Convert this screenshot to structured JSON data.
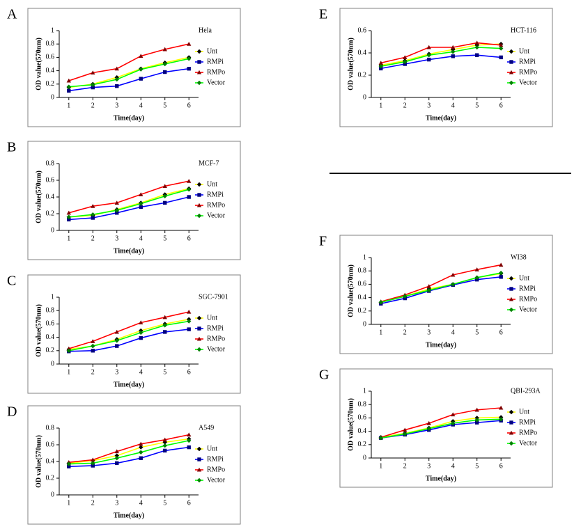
{
  "chart_data": [
    {
      "type": "line",
      "panel_label": "A",
      "title": "Hela",
      "xlabel": "Time(day)",
      "ylabel": "OD value(570nm)",
      "x": [
        1,
        2,
        3,
        4,
        5,
        6
      ],
      "xlim": [
        0.6,
        6.4
      ],
      "xticks": [
        1,
        2,
        3,
        4,
        5,
        6
      ],
      "ylim": [
        0,
        1
      ],
      "yticks": [
        0,
        0.2,
        0.4,
        0.6,
        0.8,
        1
      ],
      "series": [
        {
          "name": "Unt",
          "color": "#ffff00",
          "marker_color": "#000000",
          "marker": "diamond",
          "values": [
            0.15,
            0.2,
            0.3,
            0.43,
            0.52,
            0.6
          ]
        },
        {
          "name": "RMPi",
          "color": "#0000ff",
          "marker_color": "#000080",
          "marker": "square",
          "values": [
            0.1,
            0.15,
            0.17,
            0.28,
            0.38,
            0.43
          ]
        },
        {
          "name": "RMPo",
          "color": "#ff0000",
          "marker_color": "#800000",
          "marker": "triangle",
          "values": [
            0.25,
            0.37,
            0.43,
            0.62,
            0.72,
            0.8
          ]
        },
        {
          "name": "Vector",
          "color": "#00ff00",
          "marker_color": "#008000",
          "marker": "diamond",
          "values": [
            0.16,
            0.19,
            0.27,
            0.42,
            0.5,
            0.58
          ]
        }
      ]
    },
    {
      "type": "line",
      "panel_label": "B",
      "title": "MCF-7",
      "xlabel": "Time(day)",
      "ylabel": "OD value(570nm)",
      "x": [
        1,
        2,
        3,
        4,
        5,
        6
      ],
      "xlim": [
        0.6,
        6.4
      ],
      "xticks": [
        1,
        2,
        3,
        4,
        5,
        6
      ],
      "ylim": [
        0,
        0.8
      ],
      "yticks": [
        0,
        0.2,
        0.4,
        0.6,
        0.8
      ],
      "series": [
        {
          "name": "Unt",
          "color": "#ffff00",
          "marker_color": "#000000",
          "marker": "diamond",
          "values": [
            0.16,
            0.18,
            0.25,
            0.33,
            0.43,
            0.5
          ]
        },
        {
          "name": "RMPi",
          "color": "#0000ff",
          "marker_color": "#000080",
          "marker": "square",
          "values": [
            0.13,
            0.15,
            0.21,
            0.28,
            0.33,
            0.4
          ]
        },
        {
          "name": "RMPo",
          "color": "#ff0000",
          "marker_color": "#800000",
          "marker": "triangle",
          "values": [
            0.21,
            0.29,
            0.33,
            0.43,
            0.53,
            0.59
          ]
        },
        {
          "name": "Vector",
          "color": "#00ff00",
          "marker_color": "#008000",
          "marker": "diamond",
          "values": [
            0.16,
            0.19,
            0.24,
            0.32,
            0.41,
            0.49
          ]
        }
      ]
    },
    {
      "type": "line",
      "panel_label": "C",
      "title": "SGC-7901",
      "xlabel": "Time(day)",
      "ylabel": "OD value(570nm)",
      "x": [
        1,
        2,
        3,
        4,
        5,
        6
      ],
      "xlim": [
        0.6,
        6.4
      ],
      "xticks": [
        1,
        2,
        3,
        4,
        5,
        6
      ],
      "ylim": [
        0,
        1
      ],
      "yticks": [
        0,
        0.2,
        0.4,
        0.6,
        0.8,
        1
      ],
      "series": [
        {
          "name": "Unt",
          "color": "#ffff00",
          "marker_color": "#000000",
          "marker": "diamond",
          "values": [
            0.22,
            0.27,
            0.37,
            0.5,
            0.6,
            0.67
          ]
        },
        {
          "name": "RMPi",
          "color": "#0000ff",
          "marker_color": "#000080",
          "marker": "square",
          "values": [
            0.19,
            0.2,
            0.27,
            0.39,
            0.48,
            0.52
          ]
        },
        {
          "name": "RMPo",
          "color": "#ff0000",
          "marker_color": "#800000",
          "marker": "triangle",
          "values": [
            0.23,
            0.34,
            0.48,
            0.62,
            0.7,
            0.78
          ]
        },
        {
          "name": "Vector",
          "color": "#00ff00",
          "marker_color": "#008000",
          "marker": "diamond",
          "values": [
            0.2,
            0.27,
            0.35,
            0.47,
            0.58,
            0.64
          ]
        }
      ]
    },
    {
      "type": "line",
      "panel_label": "D",
      "title": "A549",
      "xlabel": "Time(day)",
      "ylabel": "OD value(570nm)",
      "x": [
        1,
        2,
        3,
        4,
        5,
        6
      ],
      "xlim": [
        0.6,
        6.4
      ],
      "xticks": [
        1,
        2,
        3,
        4,
        5,
        6
      ],
      "ylim": [
        0,
        0.8
      ],
      "yticks": [
        0,
        0.2,
        0.4,
        0.6,
        0.8
      ],
      "series": [
        {
          "name": "Unt",
          "color": "#ffff00",
          "marker_color": "#000000",
          "marker": "diamond",
          "values": [
            0.38,
            0.41,
            0.47,
            0.57,
            0.63,
            0.67
          ]
        },
        {
          "name": "RMPi",
          "color": "#0000ff",
          "marker_color": "#000080",
          "marker": "square",
          "values": [
            0.34,
            0.35,
            0.38,
            0.44,
            0.53,
            0.57
          ]
        },
        {
          "name": "RMPo",
          "color": "#ff0000",
          "marker_color": "#800000",
          "marker": "triangle",
          "values": [
            0.39,
            0.42,
            0.52,
            0.61,
            0.66,
            0.72
          ]
        },
        {
          "name": "Vector",
          "color": "#00ff00",
          "marker_color": "#008000",
          "marker": "diamond",
          "values": [
            0.37,
            0.38,
            0.44,
            0.51,
            0.59,
            0.65
          ]
        }
      ]
    },
    {
      "type": "line",
      "panel_label": "E",
      "title": "HCT-116",
      "xlabel": "Time(day)",
      "ylabel": "OD value(570nm)",
      "x": [
        1,
        2,
        3,
        4,
        5,
        6
      ],
      "xlim": [
        0.6,
        6.4
      ],
      "xticks": [
        1,
        2,
        3,
        4,
        5,
        6
      ],
      "ylim": [
        0,
        0.6
      ],
      "yticks": [
        0,
        0.2,
        0.4,
        0.6
      ],
      "series": [
        {
          "name": "Unt",
          "color": "#ffff00",
          "marker_color": "#000000",
          "marker": "diamond",
          "values": [
            0.29,
            0.33,
            0.39,
            0.43,
            0.47,
            0.48
          ]
        },
        {
          "name": "RMPi",
          "color": "#0000ff",
          "marker_color": "#000080",
          "marker": "square",
          "values": [
            0.26,
            0.3,
            0.34,
            0.37,
            0.38,
            0.36
          ]
        },
        {
          "name": "RMPo",
          "color": "#ff0000",
          "marker_color": "#800000",
          "marker": "triangle",
          "values": [
            0.31,
            0.36,
            0.45,
            0.45,
            0.49,
            0.47
          ]
        },
        {
          "name": "Vector",
          "color": "#00ff00",
          "marker_color": "#008000",
          "marker": "diamond",
          "values": [
            0.28,
            0.32,
            0.38,
            0.41,
            0.45,
            0.44
          ]
        }
      ]
    },
    {
      "type": "line",
      "panel_label": "F",
      "title": "WI38",
      "xlabel": "Time(day)",
      "ylabel": "OD value(570nm)",
      "x": [
        1,
        2,
        3,
        4,
        5,
        6
      ],
      "xlim": [
        0.6,
        6.4
      ],
      "xticks": [
        1,
        2,
        3,
        4,
        5,
        6
      ],
      "ylim": [
        0,
        1
      ],
      "yticks": [
        0,
        0.2,
        0.4,
        0.6,
        0.8,
        1
      ],
      "series": [
        {
          "name": "Unt",
          "color": "#ffff00",
          "marker_color": "#000000",
          "marker": "diamond",
          "values": [
            0.33,
            0.42,
            0.53,
            0.6,
            0.7,
            0.76
          ]
        },
        {
          "name": "RMPi",
          "color": "#0000ff",
          "marker_color": "#000080",
          "marker": "square",
          "values": [
            0.31,
            0.39,
            0.5,
            0.59,
            0.67,
            0.71
          ]
        },
        {
          "name": "RMPo",
          "color": "#ff0000",
          "marker_color": "#800000",
          "marker": "triangle",
          "values": [
            0.34,
            0.44,
            0.57,
            0.74,
            0.82,
            0.89
          ]
        },
        {
          "name": "Vector",
          "color": "#00ff00",
          "marker_color": "#008000",
          "marker": "diamond",
          "values": [
            0.33,
            0.42,
            0.51,
            0.6,
            0.7,
            0.77
          ]
        }
      ]
    },
    {
      "type": "line",
      "panel_label": "G",
      "title": "QBI-293A",
      "xlabel": "Time(day)",
      "ylabel": "OD value(570nm)",
      "x": [
        1,
        2,
        3,
        4,
        5,
        6
      ],
      "xlim": [
        0.6,
        6.4
      ],
      "xticks": [
        1,
        2,
        3,
        4,
        5,
        6
      ],
      "ylim": [
        0,
        1
      ],
      "yticks": [
        0,
        0.2,
        0.4,
        0.6,
        0.8,
        1
      ],
      "series": [
        {
          "name": "Unt",
          "color": "#ffff00",
          "marker_color": "#000000",
          "marker": "diamond",
          "values": [
            0.31,
            0.37,
            0.45,
            0.55,
            0.6,
            0.61
          ]
        },
        {
          "name": "RMPi",
          "color": "#0000ff",
          "marker_color": "#000080",
          "marker": "square",
          "values": [
            0.3,
            0.35,
            0.42,
            0.5,
            0.53,
            0.56
          ]
        },
        {
          "name": "RMPo",
          "color": "#ff0000",
          "marker_color": "#800000",
          "marker": "triangle",
          "values": [
            0.31,
            0.42,
            0.52,
            0.65,
            0.72,
            0.75
          ]
        },
        {
          "name": "Vector",
          "color": "#00ff00",
          "marker_color": "#008000",
          "marker": "diamond",
          "values": [
            0.3,
            0.36,
            0.44,
            0.52,
            0.57,
            0.58
          ]
        }
      ]
    }
  ]
}
